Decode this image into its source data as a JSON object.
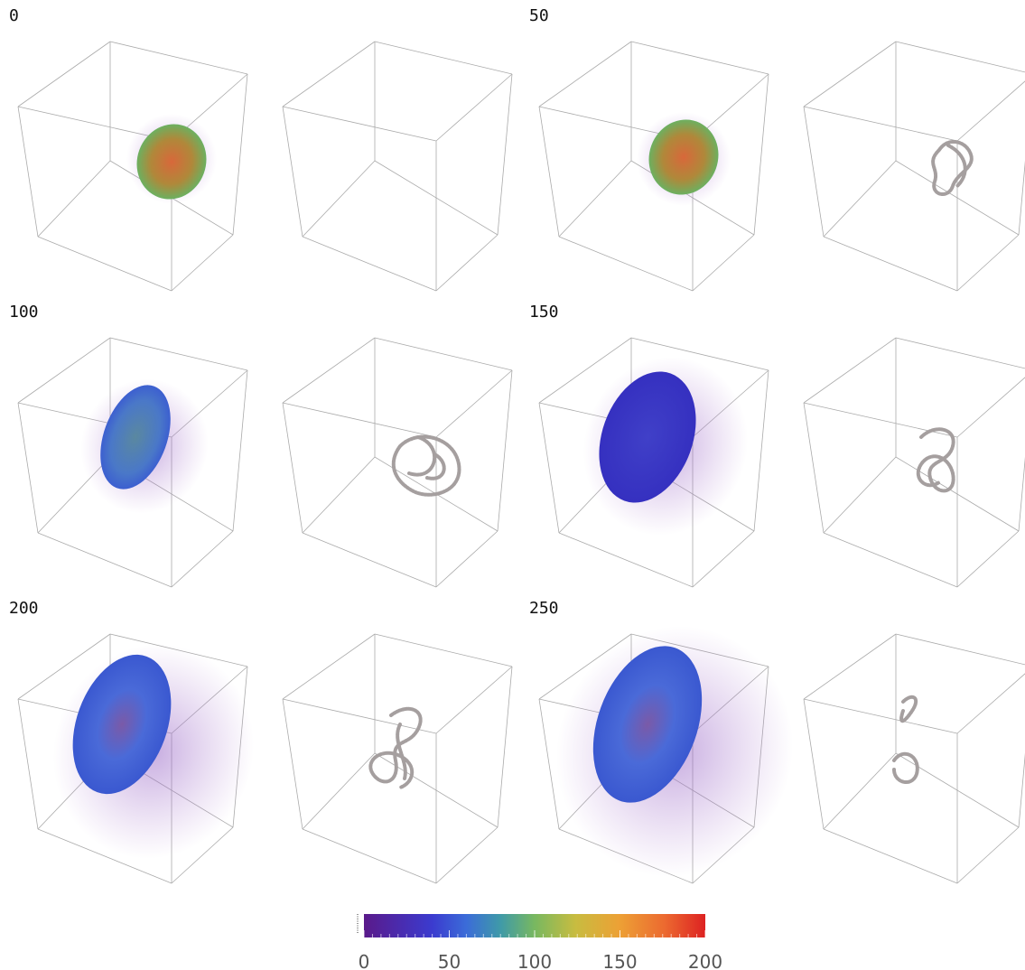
{
  "panels": [
    {
      "label": "0"
    },
    {
      "label": "50"
    },
    {
      "label": "100"
    },
    {
      "label": "150"
    },
    {
      "label": "200"
    },
    {
      "label": "250"
    }
  ],
  "colorbar": {
    "range": [
      0,
      200
    ],
    "ticks": [
      0,
      50,
      100,
      150,
      200
    ]
  }
}
